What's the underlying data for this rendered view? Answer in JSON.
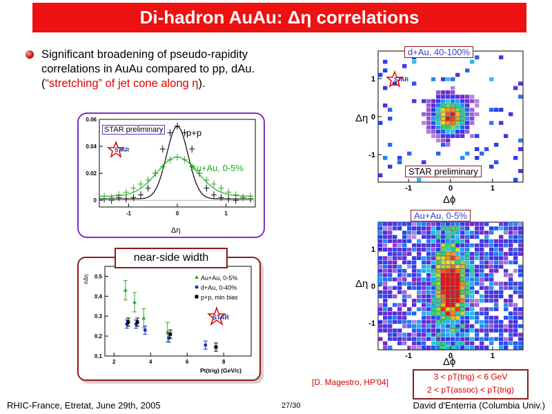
{
  "title": "Di-hadron AuAu: Δη correlations",
  "bullet": {
    "line1": "Significant broadening of pseudo-rapidity",
    "line2": "correlations in AuAu compared to pp, dAu.",
    "line3_open": "(",
    "line3_red": "“stretching” of jet cone along η",
    "line3_close": ")."
  },
  "deta_plot": {
    "preliminary": "STAR preliminary",
    "logo": "STAR",
    "label_pp": "p+p",
    "label_auau": "Au+Au, 0-5%",
    "xlabel": "Δη",
    "yticks": [
      "0.06",
      "0.04",
      "0.02",
      "0"
    ],
    "xticks": [
      "-1",
      "0",
      "1"
    ]
  },
  "width_plot": {
    "title": "near-side width",
    "ylabel": "σΔη",
    "xlabel": "Pt(trig) (GeV/c)",
    "legend": [
      "Au+Au, 0-5%",
      "d+Au, 0-40%",
      "p+p, min bias"
    ],
    "yticks": [
      "0.5",
      "0.4",
      "0.3",
      "0.2",
      "0.1"
    ],
    "xticks": [
      "2",
      "4",
      "6",
      "8"
    ],
    "logo": "STAR"
  },
  "dau_map": {
    "label": "d+Au, 40-100%",
    "preliminary": "STAR preliminary",
    "ylabel": "Δη",
    "xlabel": "Δϕ",
    "yticks": [
      "1",
      "0",
      "-1"
    ],
    "xticks": [
      "-1",
      "0",
      "1"
    ],
    "logo": "STAR"
  },
  "auau_map": {
    "label": "Au+Au, 0-5%",
    "ylabel": "Δη",
    "xlabel": "Δϕ",
    "yticks": [
      "1",
      "0",
      "-1"
    ],
    "xticks": [
      "-1",
      "0",
      "1"
    ]
  },
  "reference": "[D. Magestro, HP'04]",
  "cuts": {
    "line1": "3 < pT(trig) < 6 GeV",
    "line2": "2 < pT(assoc) < pT(trig)"
  },
  "footer": {
    "left": "RHIC-France, Etretat, June 29th, 2005",
    "page": "27/30",
    "right": "David d'Enterria (Columbia Univ.)"
  },
  "colors": {
    "title_bg": "#ee1111",
    "accent_red": "#e00000",
    "pp_color": "#000000",
    "auau_color": "#22aa22",
    "dau_color": "#1133cc"
  },
  "chart_data": [
    {
      "type": "scatter",
      "title": "",
      "xlabel": "Δη",
      "ylabel": "",
      "xlim": [
        -1.6,
        1.6
      ],
      "ylim": [
        -0.005,
        0.06
      ],
      "series": [
        {
          "name": "p+p",
          "x": [
            -1.5,
            -1.35,
            -1.2,
            -1.05,
            -0.9,
            -0.75,
            -0.6,
            -0.45,
            -0.3,
            -0.15,
            0,
            0.15,
            0.3,
            0.45,
            0.6,
            0.75,
            0.9,
            1.05,
            1.2,
            1.35,
            1.5
          ],
          "y": [
            0.001,
            0.0,
            0.002,
            0.001,
            0.002,
            0.004,
            0.009,
            0.02,
            0.038,
            0.05,
            0.055,
            0.05,
            0.038,
            0.02,
            0.009,
            0.004,
            0.002,
            0.001,
            0.0,
            0.002,
            0.001
          ]
        },
        {
          "name": "Au+Au, 0-5%",
          "x": [
            -1.5,
            -1.35,
            -1.2,
            -1.05,
            -0.9,
            -0.75,
            -0.6,
            -0.45,
            -0.3,
            -0.15,
            0,
            0.15,
            0.3,
            0.45,
            0.6,
            0.75,
            0.9,
            1.05,
            1.2,
            1.35,
            1.5
          ],
          "y": [
            0.003,
            0.002,
            0.004,
            0.006,
            0.009,
            0.012,
            0.015,
            0.02,
            0.025,
            0.03,
            0.032,
            0.03,
            0.025,
            0.02,
            0.015,
            0.012,
            0.009,
            0.006,
            0.004,
            0.002,
            0.003
          ]
        }
      ]
    },
    {
      "type": "scatter",
      "title": "near-side width",
      "xlabel": "Pt(trig) (GeV/c)",
      "ylabel": "σΔη",
      "xlim": [
        1.5,
        9.5
      ],
      "ylim": [
        0.1,
        0.55
      ],
      "series": [
        {
          "name": "Au+Au, 0-5%",
          "x": [
            2.7,
            3.2,
            3.7,
            5.0
          ],
          "y": [
            0.43,
            0.37,
            0.29,
            0.22
          ]
        },
        {
          "name": "d+Au, 0-40%",
          "x": [
            2.7,
            3.2,
            3.7,
            5.0,
            7.0
          ],
          "y": [
            0.26,
            0.26,
            0.23,
            0.19,
            0.155
          ]
        },
        {
          "name": "p+p, min bias",
          "x": [
            2.7,
            3.2,
            5.0,
            7.5
          ],
          "y": [
            0.27,
            0.27,
            0.21,
            0.145
          ]
        }
      ]
    }
  ]
}
